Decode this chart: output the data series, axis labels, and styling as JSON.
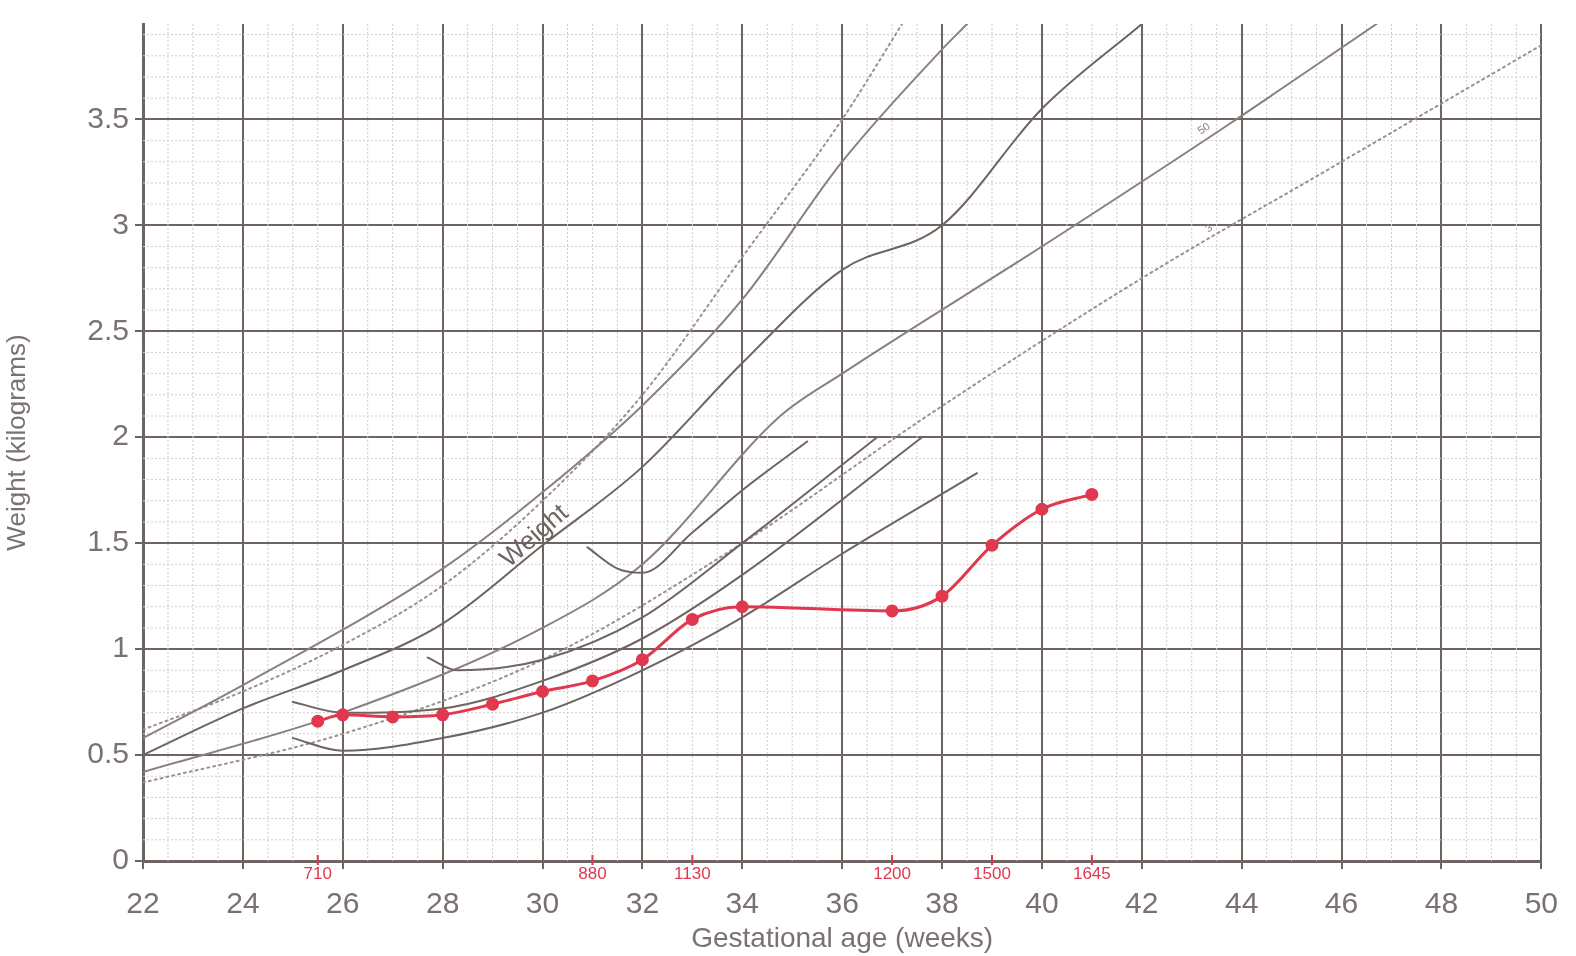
{
  "chart_data": {
    "type": "line",
    "xlabel": "Gestational age (weeks)",
    "ylabel": "Weight (kilograms)",
    "xlim": [
      22,
      50
    ],
    "xticks": [
      22,
      24,
      26,
      28,
      30,
      32,
      34,
      36,
      38,
      40,
      42,
      44,
      46,
      48,
      50
    ],
    "ylim": [
      0,
      3.95
    ],
    "yticks": [
      0,
      0.5,
      1,
      1.5,
      2,
      2.5,
      3,
      3.5
    ],
    "grid": true,
    "legend": false,
    "marker": "none",
    "line_style": "solid",
    "series": [
      {
        "color": "#9a9290",
        "line_style": "dotted",
        "x": [
          22,
          24,
          26,
          28,
          30,
          32,
          34,
          36,
          37.2
        ],
        "values": [
          0.62,
          0.8,
          1.02,
          1.3,
          1.7,
          2.2,
          2.85,
          3.5,
          3.95
        ]
      },
      {
        "color": "#8a817e",
        "x": [
          22,
          24,
          28,
          30,
          32,
          34,
          36,
          38,
          38.5
        ],
        "values": [
          0.58,
          0.83,
          1.38,
          1.74,
          2.15,
          2.65,
          3.3,
          3.83,
          3.95
        ]
      },
      {
        "color": "#6e6461",
        "x": [
          22,
          24,
          26,
          28,
          30,
          32,
          34,
          36,
          38,
          40,
          42
        ],
        "values": [
          0.5,
          0.72,
          0.9,
          1.12,
          1.49,
          1.86,
          2.35,
          2.79,
          3.0,
          3.55,
          3.95
        ]
      },
      {
        "color": "#8a817e",
        "x": [
          22,
          26,
          30,
          32,
          34.76,
          36,
          40,
          43.7,
          46.7
        ],
        "values": [
          0.42,
          0.7,
          1.1,
          1.4,
          2.1,
          2.3,
          2.9,
          3.47,
          3.95
        ]
      },
      {
        "color": "#9a9290",
        "line_style": "dotted",
        "x": [
          22,
          26,
          30,
          34,
          37.7,
          42,
          46,
          50
        ],
        "values": [
          0.37,
          0.6,
          0.95,
          1.5,
          2.1,
          2.75,
          3.3,
          3.85
        ]
      },
      {
        "color": "#6e6461",
        "x": [
          30.9,
          31.5,
          32,
          33,
          34,
          35.3
        ],
        "values": [
          1.48,
          1.38,
          1.36,
          1.55,
          1.75,
          1.98
        ]
      },
      {
        "color": "#6e6461",
        "x": [
          27.7,
          28.3,
          30,
          32,
          34,
          36.7
        ],
        "values": [
          0.96,
          0.9,
          0.95,
          1.15,
          1.5,
          2.0
        ]
      },
      {
        "color": "#6e6461",
        "x": [
          25,
          26,
          28,
          30,
          32,
          34,
          37.6
        ],
        "values": [
          0.75,
          0.7,
          0.72,
          0.85,
          1.05,
          1.35,
          2.0
        ]
      },
      {
        "color": "#6e6461",
        "x": [
          25,
          26,
          28,
          30,
          32,
          34,
          36,
          38.7
        ],
        "values": [
          0.58,
          0.52,
          0.58,
          0.7,
          0.9,
          1.15,
          1.45,
          1.83
        ]
      },
      {
        "color": "#e0384f",
        "marker": "circle",
        "x": [
          25.5,
          26,
          27,
          28,
          29,
          30,
          31,
          32,
          33,
          34,
          37,
          38,
          39,
          40,
          41
        ],
        "values": [
          0.66,
          0.69,
          0.68,
          0.69,
          0.74,
          0.8,
          0.85,
          0.95,
          1.14,
          1.2,
          1.18,
          1.25,
          1.49,
          1.66,
          1.73
        ]
      }
    ],
    "annotations": [
      {
        "text": "Weight",
        "x": 30,
        "y": 1.49
      },
      {
        "text": "50",
        "x": 43.35,
        "y": 3.42
      },
      {
        "text": "3",
        "x": 43.45,
        "y": 2.95
      },
      {
        "text": "710",
        "x": 25.5
      },
      {
        "text": "880",
        "x": 31
      },
      {
        "text": "1130",
        "x": 33
      },
      {
        "text": "1200",
        "x": 37
      },
      {
        "text": "1500",
        "x": 39
      },
      {
        "text": "1645",
        "x": 41
      }
    ]
  }
}
